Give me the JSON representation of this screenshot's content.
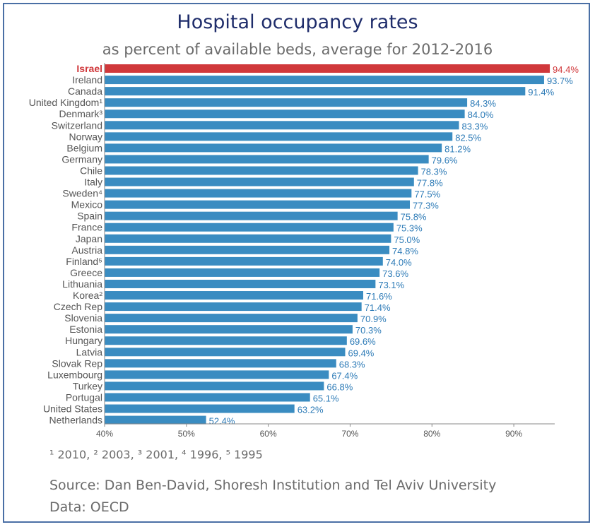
{
  "chart_data": {
    "type": "bar",
    "orientation": "horizontal",
    "title": "Hospital occupancy rates",
    "subtitle": "as percent of available beds, average for 2012-2016",
    "categories": [
      "Israel",
      "Ireland",
      "Canada",
      "United Kingdom¹",
      "Denmark³",
      "Switzerland",
      "Norway",
      "Belgium",
      "Germany",
      "Chile",
      "Italy",
      "Sweden⁴",
      "Mexico",
      "Spain",
      "France",
      "Japan",
      "Austria",
      "Finland⁵",
      "Greece",
      "Lithuania",
      "Korea²",
      "Czech Rep",
      "Slovenia",
      "Estonia",
      "Hungary",
      "Latvia",
      "Slovak Rep",
      "Luxembourg",
      "Turkey",
      "Portugal",
      "United States",
      "Netherlands"
    ],
    "values": [
      94.4,
      93.7,
      91.4,
      84.3,
      84.0,
      83.3,
      82.5,
      81.2,
      79.6,
      78.3,
      77.8,
      77.5,
      77.3,
      75.8,
      75.3,
      75.0,
      74.8,
      74.0,
      73.6,
      73.1,
      71.6,
      71.4,
      70.9,
      70.3,
      69.6,
      69.4,
      68.3,
      67.4,
      66.8,
      65.1,
      63.2,
      52.4
    ],
    "value_labels": [
      "94.4%",
      "93.7%",
      "91.4%",
      "84.3%",
      "84.0%",
      "83.3%",
      "82.5%",
      "81.2%",
      "79.6%",
      "78.3%",
      "77.8%",
      "77.5%",
      "77.3%",
      "75.8%",
      "75.3%",
      "75.0%",
      "74.8%",
      "74.0%",
      "73.6%",
      "73.1%",
      "71.6%",
      "71.4%",
      "70.9%",
      "70.3%",
      "69.6%",
      "69.4%",
      "68.3%",
      "67.4%",
      "66.8%",
      "65.1%",
      "63.2%",
      "52.4%"
    ],
    "highlight_category": "Israel",
    "xlim": [
      40,
      95
    ],
    "xticks": [
      40,
      50,
      60,
      70,
      80,
      90
    ],
    "xtick_labels": [
      "40%",
      "50%",
      "60%",
      "70%",
      "80%",
      "90%"
    ],
    "grid": false,
    "colors": {
      "bar": "#3a8cc1",
      "highlight": "#d0383b",
      "label": "#2d7bb7",
      "category_label": "#555555"
    }
  },
  "footnote": "¹ 2010, ² 2003, ³ 2001, ⁴ 1996, ⁵ 1995",
  "source": "Source: Dan Ben-David, Shoresh Institution and Tel Aviv University",
  "data_source": "Data: OECD"
}
